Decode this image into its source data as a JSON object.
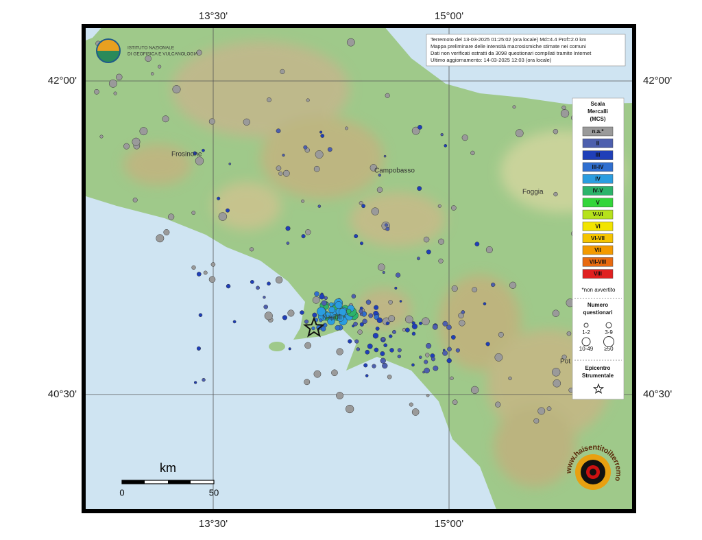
{
  "map": {
    "coordinates": {
      "top": [
        "13°30'",
        "15°00'"
      ],
      "bottom": [
        "13°30'",
        "15°00'"
      ],
      "left": [
        "42°00'",
        "40°30'"
      ],
      "right": [
        "42°00'",
        "40°30'"
      ]
    },
    "info": [
      "Terremoto del 13-03-2025 01:25:02 (ora locale) Md=4.4 Prof=2.0 km",
      "Mappa preliminare delle intensità macrosismiche stimate nei comuni",
      "Dati non verificati estratti da 3098 questionari compilati tramite Internet",
      "Ultimo aggiornamento: 14-03-2025 12:03 (ora locale)"
    ],
    "logo": [
      "ISTITUTO NAZIONALE",
      "DI GEOFISICA E VULCANOLOGIA"
    ],
    "places": [
      "Frosinone",
      "Campobasso",
      "Foggia",
      "Napoli",
      "Pot"
    ],
    "legend": {
      "title": [
        "Scala",
        "Mercalli",
        "(MCS)"
      ],
      "levels": [
        {
          "label": "n.a.*",
          "color": "#9a9a9a"
        },
        {
          "label": "II",
          "color": "#4d5fae"
        },
        {
          "label": "III",
          "color": "#1f3fb8"
        },
        {
          "label": "III-IV",
          "color": "#2f6fd0"
        },
        {
          "label": "IV",
          "color": "#2a9de0"
        },
        {
          "label": "IV-V",
          "color": "#2cb36a"
        },
        {
          "label": "V",
          "color": "#33d63a"
        },
        {
          "label": "V-VI",
          "color": "#b6e21c"
        },
        {
          "label": "VI",
          "color": "#f2e400"
        },
        {
          "label": "VI-VII",
          "color": "#f5c400"
        },
        {
          "label": "VII",
          "color": "#f39a00"
        },
        {
          "label": "VII-VIII",
          "color": "#e86a10"
        },
        {
          "label": "VIII",
          "color": "#e02020"
        }
      ],
      "note": "*non avvertito",
      "count_title": [
        "Numero",
        "questionari"
      ],
      "counts": [
        "1-2",
        "3-9",
        "10-49",
        "≥50"
      ],
      "epicenter": [
        "Epicentro",
        "Strumentale"
      ]
    },
    "scale_bar": {
      "unit": "km",
      "labels": [
        "0",
        "50"
      ]
    },
    "watermark": "www.haisentitoilterremoto.it"
  }
}
